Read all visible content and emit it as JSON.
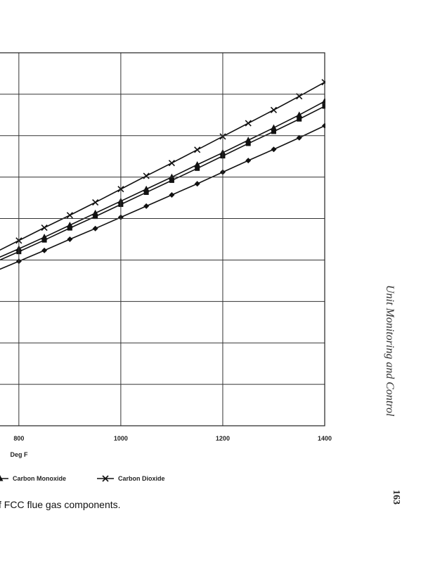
{
  "chart_data": {
    "type": "line",
    "x": [
      750,
      800,
      850,
      900,
      950,
      1000,
      1050,
      1100,
      1150,
      1200,
      1250,
      1300,
      1350,
      1400
    ],
    "series": [
      {
        "marker": "diamond",
        "color": "#111111",
        "values": [
          3.71,
          3.97,
          4.23,
          4.5,
          4.76,
          5.03,
          5.3,
          5.57,
          5.84,
          6.12,
          6.4,
          6.67,
          6.95,
          7.24
        ]
      },
      {
        "marker": "square",
        "color": "#111111",
        "values": [
          3.93,
          4.2,
          4.48,
          4.77,
          5.05,
          5.34,
          5.63,
          5.92,
          6.21,
          6.51,
          6.81,
          7.1,
          7.4,
          7.71
        ]
      },
      {
        "name": "Carbon Monoxide",
        "marker": "triangle",
        "color": "#111111",
        "values": [
          4.0,
          4.27,
          4.55,
          4.84,
          5.13,
          5.42,
          5.71,
          6.0,
          6.3,
          6.59,
          6.89,
          7.19,
          7.5,
          7.83
        ]
      },
      {
        "name": "Carbon Dioxide",
        "marker": "x",
        "color": "#111111",
        "values": [
          4.16,
          4.47,
          4.78,
          5.08,
          5.39,
          5.71,
          6.03,
          6.34,
          6.66,
          6.98,
          7.3,
          7.62,
          7.95,
          8.29
        ]
      }
    ],
    "x_label": "Deg F",
    "xlim": [
      763,
      1400
    ],
    "xticks": [
      800,
      1000,
      1200,
      1400
    ],
    "ylim": [
      0,
      9
    ],
    "yticks": [
      0,
      1,
      2,
      3,
      4,
      5,
      6,
      7,
      8,
      9
    ],
    "grid": true
  },
  "caption": "f FCC flue gas components.",
  "running_head": "Unit Monitoring and Control",
  "page_number": "163"
}
